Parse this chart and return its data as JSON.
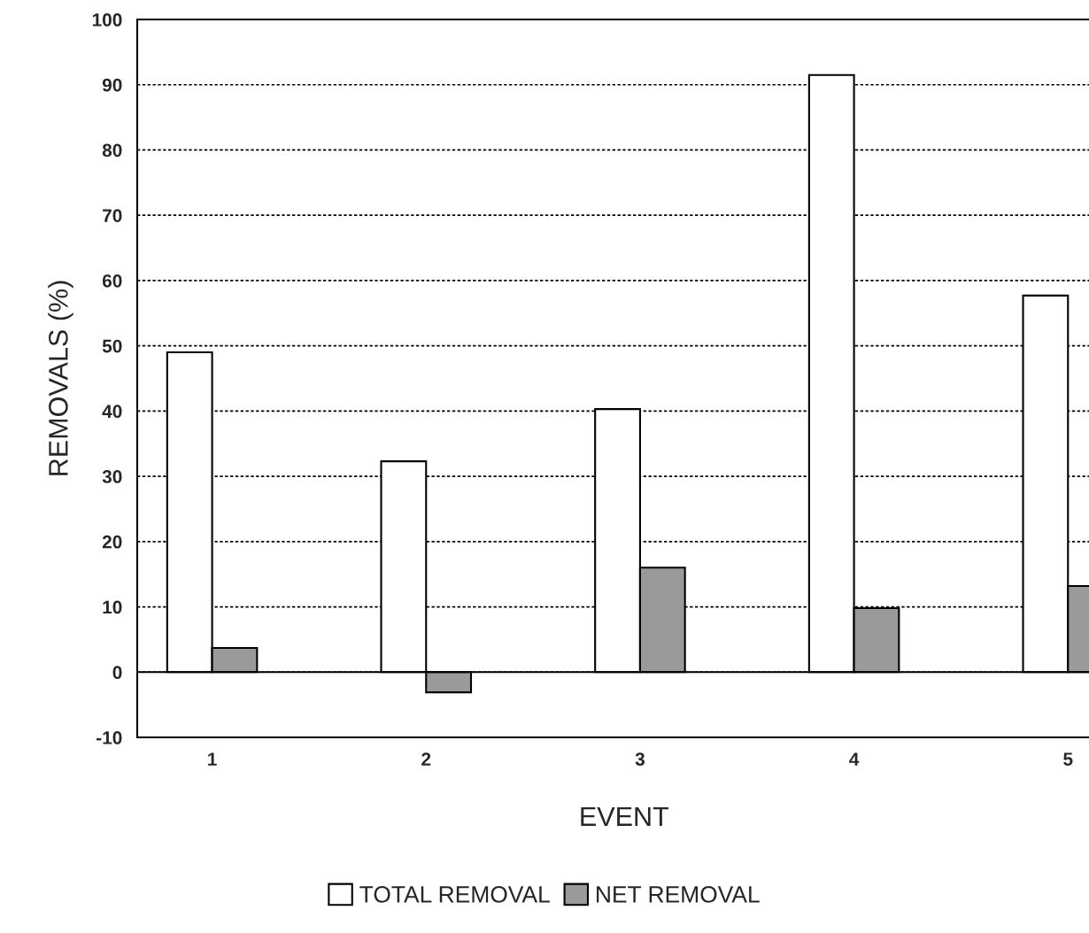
{
  "chart_data": {
    "type": "bar",
    "xlabel": "EVENT",
    "ylabel": "REMOVALS (%)",
    "categories": [
      "1",
      "2",
      "3",
      "4",
      "5"
    ],
    "series": [
      {
        "name": "TOTAL REMOVAL",
        "color": "#ffffff",
        "values": [
          49.0,
          32.3,
          40.3,
          91.5,
          57.7
        ]
      },
      {
        "name": "NET REMOVAL",
        "color": "#9a9a9a",
        "values": [
          3.7,
          -3.1,
          16.0,
          9.8,
          13.2
        ]
      }
    ],
    "ylim": [
      -10,
      100
    ],
    "yticks": [
      -10,
      0,
      10,
      20,
      30,
      40,
      50,
      60,
      70,
      80,
      90,
      100
    ],
    "grid": "y",
    "legend": "bottom"
  }
}
